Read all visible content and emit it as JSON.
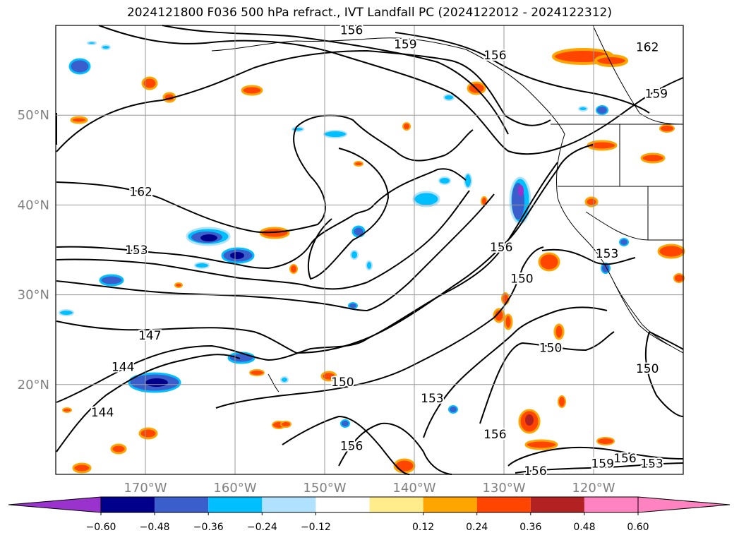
{
  "title": "2024121800 F036 500 hPa refract., IVT Landfall PC (2024122012 - 2024122312)",
  "map": {
    "lon_range": [
      -180,
      -110
    ],
    "lat_range": [
      10,
      60
    ],
    "lon_ticks": [
      {
        "value": -170,
        "label": "170°W"
      },
      {
        "value": -160,
        "label": "160°W"
      },
      {
        "value": -150,
        "label": "150°W"
      },
      {
        "value": -140,
        "label": "140°W"
      },
      {
        "value": -130,
        "label": "130°W"
      },
      {
        "value": -120,
        "label": "120°W"
      }
    ],
    "lat_ticks": [
      {
        "value": 20,
        "label": "20°N"
      },
      {
        "value": 30,
        "label": "30°N"
      },
      {
        "value": 40,
        "label": "40°N"
      },
      {
        "value": 50,
        "label": "50°N"
      }
    ],
    "grid": true,
    "tick_label_color": "#808080",
    "contour_labels": [
      {
        "text": "156",
        "lon": -147.0,
        "lat": 59.5
      },
      {
        "text": "159",
        "lon": -141.0,
        "lat": 57.9
      },
      {
        "text": "156",
        "lon": -131.0,
        "lat": 56.7
      },
      {
        "text": "162",
        "lon": -114.0,
        "lat": 57.6
      },
      {
        "text": "159",
        "lon": -113.0,
        "lat": 52.4
      },
      {
        "text": "162",
        "lon": -170.5,
        "lat": 41.5
      },
      {
        "text": "153",
        "lon": -171.0,
        "lat": 35.0
      },
      {
        "text": "147",
        "lon": -169.5,
        "lat": 25.5
      },
      {
        "text": "144",
        "lon": -172.5,
        "lat": 22.0
      },
      {
        "text": "144",
        "lon": -174.8,
        "lat": 16.9
      },
      {
        "text": "150",
        "lon": -148.0,
        "lat": 20.3
      },
      {
        "text": "153",
        "lon": -138.0,
        "lat": 18.5
      },
      {
        "text": "156",
        "lon": -147.0,
        "lat": 13.2
      },
      {
        "text": "156",
        "lon": -131.0,
        "lat": 14.5
      },
      {
        "text": "156",
        "lon": -130.3,
        "lat": 35.3
      },
      {
        "text": "150",
        "lon": -128.0,
        "lat": 31.8
      },
      {
        "text": "150",
        "lon": -124.8,
        "lat": 24.1
      },
      {
        "text": "153",
        "lon": -118.5,
        "lat": 34.6
      },
      {
        "text": "150",
        "lon": -114.0,
        "lat": 21.8
      },
      {
        "text": "156",
        "lon": -126.5,
        "lat": 10.4
      },
      {
        "text": "159",
        "lon": -119.0,
        "lat": 11.2
      },
      {
        "text": "156",
        "lon": -116.5,
        "lat": 11.8
      },
      {
        "text": "153",
        "lon": -113.5,
        "lat": 11.2
      }
    ]
  },
  "colorbar": {
    "levels": [
      "-0.60",
      "-0.48",
      "-0.36",
      "-0.24",
      "-0.12",
      "0.12",
      "0.24",
      "0.36",
      "0.48",
      "0.60"
    ],
    "colors": [
      "#9a32cd",
      "#00008b",
      "#3a5fcd",
      "#00bfff",
      "#b0e2ff",
      "#ffffff",
      "#ffec8b",
      "#ffa500",
      "#ff4500",
      "#b22222",
      "#ff83c0",
      "#ff83c0"
    ]
  }
}
